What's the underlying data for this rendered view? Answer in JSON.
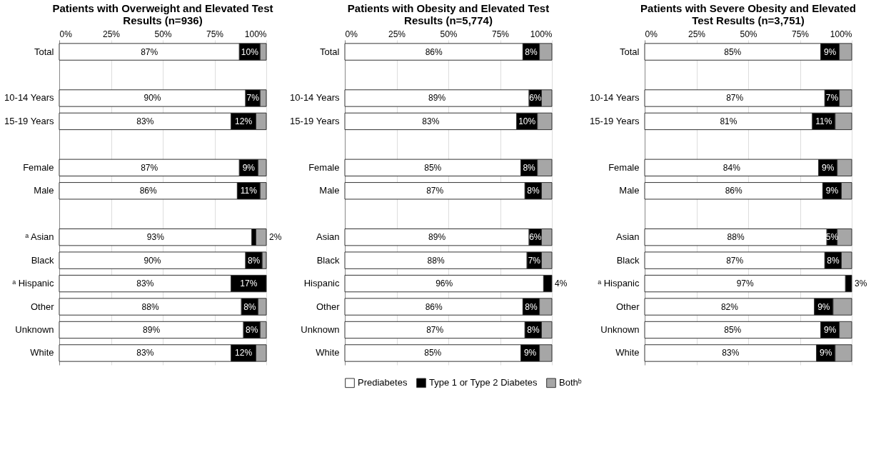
{
  "chart_data": [
    {
      "type": "bar",
      "orientation": "horizontal",
      "stacked": true,
      "title": "Patients with Overweight and Elevated Test Results (n=936)",
      "categories": [
        "Total",
        null,
        "10-14 Years",
        "15-19 Years",
        null,
        "Female",
        "Male",
        null,
        "ᵃ Asian",
        "Black",
        "ᵃ Hispanic",
        "Other",
        "Unknown",
        "White"
      ],
      "series": [
        {
          "color": "#ffffff",
          "values": [
            87,
            null,
            90,
            83,
            null,
            87,
            86,
            null,
            93,
            90,
            83,
            88,
            89,
            83
          ],
          "value_labels": [
            "87%",
            null,
            "90%",
            "83%",
            null,
            "87%",
            "86%",
            null,
            "93%",
            "90%",
            "83%",
            "88%",
            "89%",
            "83%"
          ]
        },
        {
          "color": "#000000",
          "values": [
            10,
            null,
            7,
            12,
            null,
            9,
            11,
            null,
            2,
            8,
            17,
            8,
            8,
            12
          ],
          "value_labels": [
            "10%",
            null,
            "7%",
            "12%",
            null,
            "9%",
            "11%",
            null,
            "2%",
            "8%",
            "17%",
            "8%",
            "8%",
            "12%"
          ]
        },
        {
          "color": "#a6a6a6",
          "values": [
            3,
            null,
            3,
            5,
            null,
            4,
            3,
            null,
            5,
            2,
            null,
            4,
            3,
            5
          ]
        }
      ],
      "xlim": [
        0,
        100
      ],
      "xticks": [
        {
          "value": 0,
          "label": "0%"
        },
        {
          "value": 25,
          "label": "25%"
        },
        {
          "value": 50,
          "label": "50%"
        },
        {
          "value": 75,
          "label": "75%"
        },
        {
          "value": 100,
          "label": "100%"
        }
      ],
      "grid": "x"
    },
    {
      "type": "bar",
      "orientation": "horizontal",
      "stacked": true,
      "title": "Patients with Obesity and Elevated Test Results (n=5,774)",
      "categories": [
        "Total",
        null,
        "10-14 Years",
        "15-19 Years",
        null,
        "Female",
        "Male",
        null,
        "Asian",
        "Black",
        "Hispanic",
        "Other",
        "Unknown",
        "White"
      ],
      "series": [
        {
          "name": "Prediabetes",
          "color": "#ffffff",
          "values": [
            86,
            null,
            89,
            83,
            null,
            85,
            87,
            null,
            89,
            88,
            96,
            86,
            87,
            85
          ],
          "value_labels": [
            "86%",
            null,
            "89%",
            "83%",
            null,
            "85%",
            "87%",
            null,
            "89%",
            "88%",
            "96%",
            "86%",
            "87%",
            "85%"
          ]
        },
        {
          "name": "Type 1 or Type 2 Diabetes",
          "color": "#000000",
          "values": [
            8,
            null,
            6,
            10,
            null,
            8,
            8,
            null,
            6,
            7,
            4,
            8,
            8,
            9
          ],
          "value_labels": [
            "8%",
            null,
            "6%",
            "10%",
            null,
            "8%",
            "8%",
            null,
            "6%",
            "7%",
            "4%",
            "8%",
            "8%",
            "9%"
          ]
        },
        {
          "name": "Bothᵇ",
          "color": "#a6a6a6",
          "values": [
            6,
            null,
            5,
            7,
            null,
            7,
            5,
            null,
            5,
            5,
            null,
            6,
            5,
            6
          ]
        }
      ],
      "xlim": [
        0,
        100
      ],
      "xticks": [
        {
          "value": 0,
          "label": "0%"
        },
        {
          "value": 25,
          "label": "25%"
        },
        {
          "value": 50,
          "label": "50%"
        },
        {
          "value": 75,
          "label": "75%"
        },
        {
          "value": 100,
          "label": "100%"
        }
      ],
      "grid": "x",
      "legend": "bottom"
    },
    {
      "type": "bar",
      "orientation": "horizontal",
      "stacked": true,
      "title": "Patients with Severe Obesity and Elevated Test Results (n=3,751)",
      "categories": [
        "Total",
        null,
        "10-14 Years",
        "15-19 Years",
        null,
        "Female",
        "Male",
        null,
        "Asian",
        "Black",
        "ᵃ Hispanic",
        "Other",
        "Unknown",
        "White"
      ],
      "series": [
        {
          "color": "#ffffff",
          "values": [
            85,
            null,
            87,
            81,
            null,
            84,
            86,
            null,
            88,
            87,
            97,
            82,
            85,
            83
          ],
          "value_labels": [
            "85%",
            null,
            "87%",
            "81%",
            null,
            "84%",
            "86%",
            null,
            "88%",
            "87%",
            "97%",
            "82%",
            "85%",
            "83%"
          ]
        },
        {
          "color": "#000000",
          "values": [
            9,
            null,
            7,
            11,
            null,
            9,
            9,
            null,
            5,
            8,
            3,
            9,
            9,
            9
          ],
          "value_labels": [
            "9%",
            null,
            "7%",
            "11%",
            null,
            "9%",
            "9%",
            null,
            "5%",
            "8%",
            "3%",
            "9%",
            "9%",
            "9%"
          ]
        },
        {
          "color": "#a6a6a6",
          "values": [
            6,
            null,
            6,
            8,
            null,
            7,
            5,
            null,
            7,
            5,
            null,
            9,
            6,
            8
          ]
        }
      ],
      "xlim": [
        0,
        100
      ],
      "xticks": [
        {
          "value": 0,
          "label": "0%"
        },
        {
          "value": 25,
          "label": "25%"
        },
        {
          "value": 50,
          "label": "50%"
        },
        {
          "value": 75,
          "label": "75%"
        },
        {
          "value": 100,
          "label": "100%"
        }
      ],
      "grid": "x"
    }
  ]
}
